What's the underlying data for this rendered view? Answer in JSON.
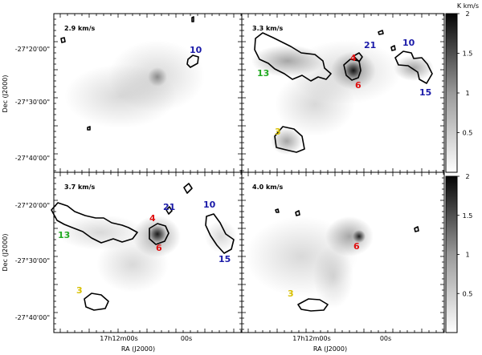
{
  "chart_data": {
    "type": "heatmap",
    "layout": "2x2 channel map panels with shared colorbars",
    "xlabel": "RA (J2000)",
    "ylabel": "Dec (J2000)",
    "x_ticks": [
      "17h12m00s",
      "00s"
    ],
    "y_ticks": [
      "-27°20'00\"",
      "-27°30'00\"",
      "-27°40'00\""
    ],
    "colorbar": {
      "unit": "K km/s",
      "range": [
        0,
        2
      ],
      "ticks": [
        "0.5",
        "1",
        "1.5",
        "2"
      ],
      "colormap": "grayscale (white low, black high)"
    },
    "panels": [
      {
        "velocity": "2.9 km/s",
        "sources": [
          {
            "id": "10",
            "color": "#1a1aa8"
          }
        ]
      },
      {
        "velocity": "3.3 km/s",
        "sources": [
          {
            "id": "21",
            "color": "#1a1aa8"
          },
          {
            "id": "10",
            "color": "#1a1aa8"
          },
          {
            "id": "4",
            "color": "#e01010"
          },
          {
            "id": "6",
            "color": "#e01010"
          },
          {
            "id": "13",
            "color": "#22aa22"
          },
          {
            "id": "15",
            "color": "#1a1aa8"
          },
          {
            "id": "3",
            "color": "#d8c000"
          }
        ]
      },
      {
        "velocity": "3.7 km/s",
        "sources": [
          {
            "id": "21",
            "color": "#1a1aa8"
          },
          {
            "id": "10",
            "color": "#1a1aa8"
          },
          {
            "id": "4",
            "color": "#e01010"
          },
          {
            "id": "13",
            "color": "#22aa22"
          },
          {
            "id": "6",
            "color": "#e01010"
          },
          {
            "id": "15",
            "color": "#1a1aa8"
          },
          {
            "id": "3",
            "color": "#d8c000"
          }
        ]
      },
      {
        "velocity": "4.0 km/s",
        "sources": [
          {
            "id": "6",
            "color": "#e01010"
          },
          {
            "id": "3",
            "color": "#d8c000"
          }
        ]
      }
    ]
  }
}
